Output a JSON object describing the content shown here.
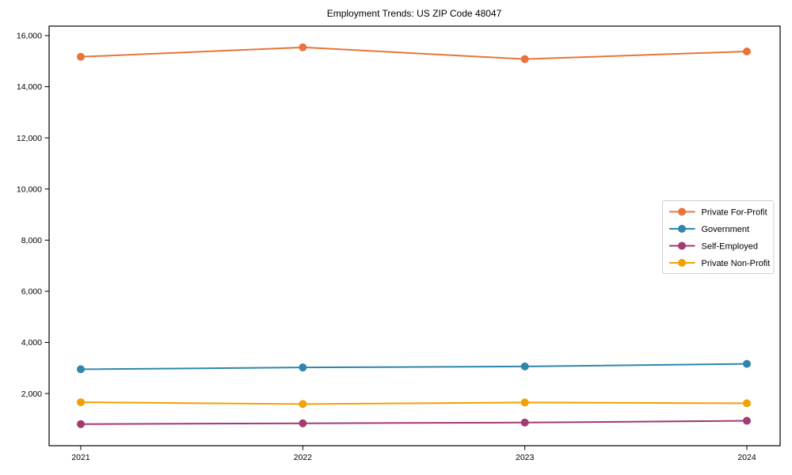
{
  "chart_data": {
    "type": "line",
    "title": "Employment Trends: US ZIP Code 48047",
    "xlabel": "",
    "ylabel": "",
    "x": [
      2021,
      2022,
      2023,
      2024
    ],
    "x_tick_labels": [
      "2021",
      "2022",
      "2023",
      "2024"
    ],
    "series": [
      {
        "name": "Private For-Profit",
        "color": "#E8743B",
        "values": [
          15170,
          15540,
          15080,
          15380
        ]
      },
      {
        "name": "Government",
        "color": "#2E86AB",
        "values": [
          2950,
          3020,
          3060,
          3160
        ]
      },
      {
        "name": "Self-Employed",
        "color": "#A23B72",
        "values": [
          805,
          835,
          865,
          935
        ]
      },
      {
        "name": "Private Non-Profit",
        "color": "#F2A104",
        "values": [
          1660,
          1590,
          1650,
          1620
        ]
      }
    ],
    "yticks": [
      2000,
      4000,
      6000,
      8000,
      10000,
      12000,
      14000,
      16000
    ],
    "ytick_labels": [
      "2,000",
      "4,000",
      "6,000",
      "8,000",
      "10,000",
      "12,000",
      "14,000",
      "16,000"
    ],
    "ylim": [
      -40,
      16370
    ],
    "grid": false,
    "marker": "circle",
    "legend_position": "center right",
    "legend_border_color": "#cccccc",
    "axis_color": "#000000"
  }
}
